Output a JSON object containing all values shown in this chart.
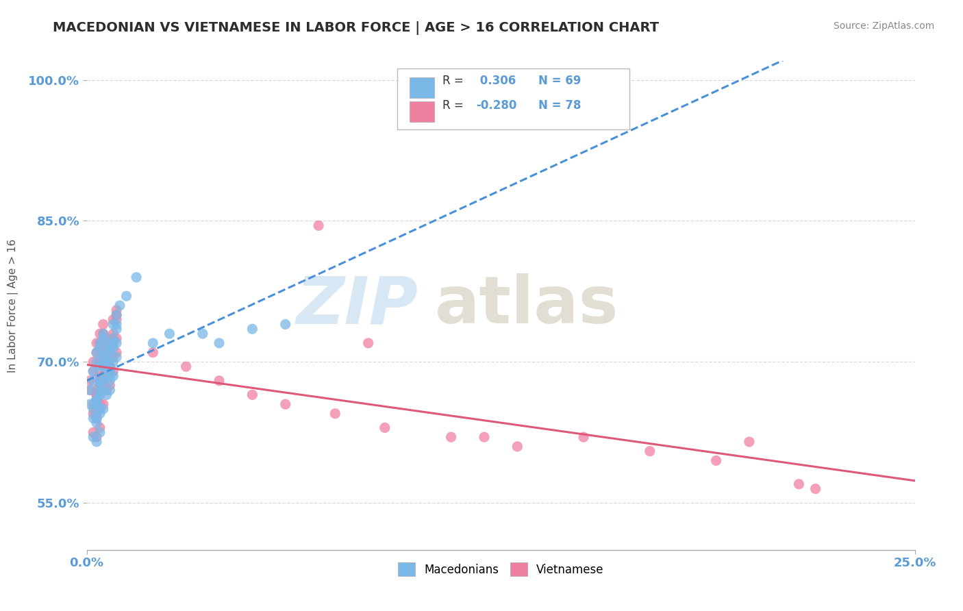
{
  "title": "MACEDONIAN VS VIETNAMESE IN LABOR FORCE | AGE > 16 CORRELATION CHART",
  "source_text": "Source: ZipAtlas.com",
  "ylabel": "In Labor Force | Age > 16",
  "xlim": [
    0.0,
    0.25
  ],
  "ylim": [
    0.5,
    1.02
  ],
  "y_ticks": [
    0.55,
    0.7,
    0.85,
    1.0
  ],
  "y_tick_labels": [
    "55.0%",
    "70.0%",
    "85.0%",
    "100.0%"
  ],
  "x_ticks": [
    0.0,
    0.25
  ],
  "x_tick_labels": [
    "0.0%",
    "25.0%"
  ],
  "macedonian_color": "#7ab8e8",
  "vietnamese_color": "#f080a0",
  "trend_mac_color": "#4a90d9",
  "trend_vie_color": "#e05878",
  "background_color": "#ffffff",
  "grid_color": "#d8d8d8",
  "title_color": "#2d2d2d",
  "tick_color": "#5b9bd5",
  "r_color": "#5b9bd5",
  "watermark_zip_color": "#b8d4ec",
  "watermark_atlas_color": "#c8bfa8",
  "mac_x": [
    0.001,
    0.001,
    0.002,
    0.002,
    0.003,
    0.003,
    0.004,
    0.004,
    0.005,
    0.005,
    0.006,
    0.006,
    0.007,
    0.007,
    0.008,
    0.008,
    0.009,
    0.009,
    0.003,
    0.004,
    0.005,
    0.006,
    0.007,
    0.008,
    0.004,
    0.005,
    0.006,
    0.007,
    0.003,
    0.004,
    0.002,
    0.003,
    0.004,
    0.005,
    0.006,
    0.007,
    0.008,
    0.009,
    0.004,
    0.005,
    0.002,
    0.003,
    0.004,
    0.005,
    0.006,
    0.007,
    0.008,
    0.009,
    0.003,
    0.004,
    0.002,
    0.003,
    0.004,
    0.005,
    0.006,
    0.007,
    0.008,
    0.009,
    0.003,
    0.004,
    0.02,
    0.025,
    0.035,
    0.04,
    0.05,
    0.06,
    0.01,
    0.012,
    0.015
  ],
  "mac_y": [
    0.67,
    0.655,
    0.69,
    0.68,
    0.71,
    0.7,
    0.72,
    0.715,
    0.73,
    0.725,
    0.7,
    0.695,
    0.68,
    0.685,
    0.72,
    0.715,
    0.74,
    0.735,
    0.66,
    0.665,
    0.705,
    0.71,
    0.695,
    0.725,
    0.68,
    0.695,
    0.7,
    0.715,
    0.655,
    0.67,
    0.65,
    0.66,
    0.675,
    0.68,
    0.72,
    0.71,
    0.74,
    0.75,
    0.695,
    0.705,
    0.64,
    0.655,
    0.665,
    0.67,
    0.685,
    0.69,
    0.7,
    0.705,
    0.64,
    0.65,
    0.62,
    0.635,
    0.645,
    0.65,
    0.665,
    0.67,
    0.685,
    0.72,
    0.615,
    0.625,
    0.72,
    0.73,
    0.73,
    0.72,
    0.735,
    0.74,
    0.76,
    0.77,
    0.79
  ],
  "vie_x": [
    0.001,
    0.001,
    0.002,
    0.002,
    0.003,
    0.003,
    0.004,
    0.004,
    0.005,
    0.005,
    0.006,
    0.006,
    0.007,
    0.007,
    0.008,
    0.008,
    0.009,
    0.009,
    0.003,
    0.004,
    0.005,
    0.006,
    0.007,
    0.008,
    0.004,
    0.005,
    0.006,
    0.007,
    0.003,
    0.004,
    0.002,
    0.003,
    0.004,
    0.005,
    0.006,
    0.007,
    0.008,
    0.009,
    0.004,
    0.005,
    0.002,
    0.003,
    0.004,
    0.005,
    0.006,
    0.007,
    0.008,
    0.009,
    0.003,
    0.004,
    0.002,
    0.003,
    0.004,
    0.005,
    0.006,
    0.007,
    0.008,
    0.009,
    0.003,
    0.004,
    0.02,
    0.03,
    0.04,
    0.05,
    0.06,
    0.075,
    0.09,
    0.11,
    0.13,
    0.15,
    0.17,
    0.19,
    0.2,
    0.215,
    0.22,
    0.07,
    0.085,
    0.12
  ],
  "vie_y": [
    0.68,
    0.67,
    0.7,
    0.69,
    0.72,
    0.71,
    0.73,
    0.72,
    0.74,
    0.73,
    0.71,
    0.7,
    0.69,
    0.695,
    0.725,
    0.72,
    0.75,
    0.745,
    0.67,
    0.675,
    0.715,
    0.72,
    0.705,
    0.73,
    0.685,
    0.695,
    0.705,
    0.72,
    0.665,
    0.675,
    0.655,
    0.665,
    0.68,
    0.685,
    0.725,
    0.715,
    0.745,
    0.755,
    0.7,
    0.71,
    0.645,
    0.66,
    0.67,
    0.675,
    0.69,
    0.695,
    0.705,
    0.71,
    0.645,
    0.655,
    0.625,
    0.64,
    0.65,
    0.655,
    0.67,
    0.675,
    0.69,
    0.725,
    0.62,
    0.63,
    0.71,
    0.695,
    0.68,
    0.665,
    0.655,
    0.645,
    0.63,
    0.62,
    0.61,
    0.62,
    0.605,
    0.595,
    0.615,
    0.57,
    0.565,
    0.845,
    0.72,
    0.62
  ],
  "mac_trend_x0": 0.0,
  "mac_trend_x1": 0.25,
  "vie_trend_x0": 0.0,
  "vie_trend_x1": 0.25
}
